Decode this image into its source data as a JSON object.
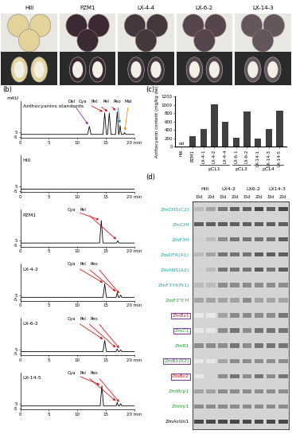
{
  "photo_panel": {
    "items": [
      {
        "label": "Hill",
        "color": "#e3d29a"
      },
      {
        "label": "PZM1",
        "color": "#3b2a33"
      },
      {
        "label": "LX-4-4",
        "color": "#46363e"
      },
      {
        "label": "LX-6-2",
        "color": "#56454d"
      },
      {
        "label": "LX-14-3",
        "color": "#65555c"
      }
    ]
  },
  "chart_data": [
    {
      "type": "line",
      "panel_label": "(b)",
      "y_label": "mAU",
      "title": "Anthocyanins standards",
      "color": "#000000",
      "x": [
        0,
        11.8,
        12.1,
        12.4,
        14.5,
        14.8,
        15.1,
        15.3,
        15.6,
        15.9,
        16.7,
        17.0,
        17.25,
        17.3,
        17.5,
        17.7,
        18.1,
        18.3,
        18.5,
        20
      ],
      "values": [
        0,
        0,
        18,
        0,
        0,
        48,
        0,
        0,
        48,
        0,
        0,
        50,
        0,
        0,
        20,
        0,
        0,
        4,
        0,
        0
      ],
      "xlim": [
        0,
        20
      ],
      "xticks": [
        0,
        5,
        10,
        15,
        {
          "value": 20,
          "label": "20 min"
        }
      ],
      "ylim": [
        -8,
        75
      ],
      "yticks": [
        -5,
        5
      ],
      "annotations": [
        {
          "text": "Del",
          "x": 12.1,
          "y": 18,
          "color": "#7a2fb0"
        },
        {
          "text": "Cya",
          "x": 14.8,
          "y": 48,
          "color": "#d01818"
        },
        {
          "text": "Pet",
          "x": 15.6,
          "y": 48,
          "color": "#d01818"
        },
        {
          "text": "Pel",
          "x": 17.0,
          "y": 50,
          "color": "#d01818"
        },
        {
          "text": "Peo",
          "x": 17.5,
          "y": 20,
          "color": "#1f6fd0"
        },
        {
          "text": "Mal",
          "x": 18.3,
          "y": 4,
          "color": "#f08a10"
        }
      ]
    },
    {
      "type": "line",
      "title": "Hill",
      "color": "#000000",
      "x": [
        0,
        20
      ],
      "values": [
        0,
        0
      ],
      "xlim": [
        0,
        20
      ],
      "xticks": [
        0,
        5,
        10,
        15,
        {
          "value": 20,
          "label": "20 min"
        }
      ],
      "ylim": [
        -8,
        75
      ],
      "yticks": [
        -5,
        5
      ]
    },
    {
      "type": "line",
      "title": "PZM1",
      "color": "#000000",
      "x": [
        0,
        13.9,
        14.2,
        14.5,
        16.9,
        17.1,
        17.3,
        20
      ],
      "values": [
        0,
        0,
        50,
        0,
        0,
        5,
        0,
        0
      ],
      "xlim": [
        0,
        20
      ],
      "xticks": [
        0,
        5,
        10,
        15,
        {
          "value": 20,
          "label": "20 min"
        }
      ],
      "ylim": [
        -8,
        75
      ],
      "yticks": [
        -5,
        5
      ],
      "annotations": [
        {
          "text": "Cya",
          "x": 14.2,
          "y": 50,
          "color": "#d01818"
        },
        {
          "text": "Pel",
          "x": 17.1,
          "y": 5,
          "color": "#d01818"
        }
      ]
    },
    {
      "type": "line",
      "title": "LX-4-2",
      "color": "#000000",
      "x": [
        0,
        14.5,
        14.8,
        15.1,
        16.8,
        17.0,
        17.2,
        17.4,
        17.6,
        17.8,
        20
      ],
      "values": [
        0,
        0,
        30,
        0,
        0,
        10,
        0,
        0,
        5,
        0,
        0
      ],
      "xlim": [
        0,
        20
      ],
      "xticks": [
        0,
        5,
        10,
        15,
        {
          "value": 20,
          "label": "20 min"
        }
      ],
      "ylim": [
        -8,
        75
      ],
      "yticks": [
        -5,
        5
      ],
      "annotations": [
        {
          "text": "Cya",
          "x": 14.8,
          "y": 30,
          "color": "#d01818"
        },
        {
          "text": "Pel",
          "x": 17.0,
          "y": 10,
          "color": "#d01818"
        },
        {
          "text": "Peo",
          "x": 17.6,
          "y": 5,
          "color": "#d01818"
        }
      ]
    },
    {
      "type": "line",
      "title": "LX-6-2",
      "color": "#000000",
      "x": [
        0,
        14.5,
        14.8,
        15.1,
        16.8,
        17.0,
        17.2,
        17.4,
        17.6,
        17.8,
        20
      ],
      "values": [
        0,
        0,
        25,
        0,
        0,
        6,
        0,
        0,
        4,
        0,
        0
      ],
      "xlim": [
        0,
        20
      ],
      "xticks": [
        0,
        5,
        10,
        15,
        {
          "value": 20,
          "label": "20 min"
        }
      ],
      "ylim": [
        -8,
        75
      ],
      "yticks": [
        -5,
        5
      ],
      "annotations": [
        {
          "text": "Cya",
          "x": 14.8,
          "y": 25,
          "color": "#d01818"
        },
        {
          "text": "Pel",
          "x": 17.0,
          "y": 6,
          "color": "#d01818"
        },
        {
          "text": "Peo",
          "x": 17.6,
          "y": 4,
          "color": "#d01818"
        }
      ]
    },
    {
      "type": "line",
      "title": "LX-14-5",
      "color": "#000000",
      "x": [
        0,
        14.0,
        14.3,
        14.6,
        16.8,
        17.0,
        17.2,
        17.4,
        17.6,
        17.8,
        20
      ],
      "values": [
        0,
        0,
        45,
        0,
        0,
        8,
        0,
        0,
        5,
        0,
        0
      ],
      "xlim": [
        0,
        20
      ],
      "xticks": [
        0,
        5,
        10,
        15,
        {
          "value": 20,
          "label": "20 min"
        }
      ],
      "ylim": [
        -8,
        75
      ],
      "yticks": [
        -5,
        5
      ],
      "annotations": [
        {
          "text": "Cya",
          "x": 14.3,
          "y": 45,
          "color": "#d01818"
        },
        {
          "text": "Pel",
          "x": 17.0,
          "y": 8,
          "color": "#d01818"
        },
        {
          "text": "Peo",
          "x": 17.6,
          "y": 5,
          "color": "#d01818"
        }
      ]
    },
    {
      "type": "bar",
      "panel_label": "(c)",
      "y_label": "Anthocyanin content (mg/kg dw)",
      "color": "#404040",
      "categories": [
        "Hill",
        "PZM1",
        "LX-4-1",
        "LX-4-2",
        "LX-4-4",
        "LX-6-1",
        "LX-6-2",
        "LX-14-1",
        "LX-14-3",
        "LX-14-5"
      ],
      "values": [
        null,
        250,
        430,
        1010,
        590,
        220,
        840,
        190,
        420,
        860
      ],
      "annotations": [
        {
          "category": "Hill",
          "text": "nd"
        }
      ],
      "groups": [
        {
          "label": "pCL1",
          "categories": [
            "LX-4-1",
            "LX-4-2",
            "LX-4-4"
          ]
        },
        {
          "label": "pCL3",
          "categories": [
            "LX-6-1",
            "LX-6-2"
          ]
        },
        {
          "label": "pCL4",
          "categories": [
            "LX-14-1",
            "LX-14-3",
            "LX-14-5"
          ]
        }
      ],
      "ylim": [
        0,
        1200
      ],
      "yticks": [
        0,
        200,
        400,
        600,
        800,
        1000,
        1200
      ]
    },
    {
      "type": "heatmap",
      "panel_label": "(d)",
      "groups": [
        {
          "label": "Hill",
          "columns": [
            "15d",
            "20d"
          ]
        },
        {
          "label": "LX4-2",
          "columns": [
            "15d",
            "20d"
          ]
        },
        {
          "label": "LX6-2",
          "columns": [
            "15d",
            "20d"
          ]
        },
        {
          "label": "LX14-3",
          "columns": [
            "15d",
            "20d"
          ]
        }
      ],
      "rows": [
        {
          "label": "ZmCHS(C2)",
          "color": "#1aa3a3",
          "boxed": false
        },
        {
          "label": "ZmCHI",
          "color": "#1aa3a3",
          "boxed": false
        },
        {
          "label": "ZmF3H",
          "color": "#1aa3a3",
          "boxed": false
        },
        {
          "label": "ZmDFR(A1)",
          "color": "#1aa3a3",
          "boxed": false
        },
        {
          "label": "ZmANS(A2)",
          "color": "#1aa3a3",
          "boxed": false
        },
        {
          "label": "ZmF3'H(Pr1)",
          "color": "#1aa3a3",
          "boxed": false
        },
        {
          "label": "ZmF3'5'H",
          "color": "#2e9a3a",
          "boxed": false
        },
        {
          "label": "ZmBz1",
          "color": "#d42020",
          "boxed": true
        },
        {
          "label": "ZmC1",
          "color": "#2e9a3a",
          "boxed": true
        },
        {
          "label": "ZmR1",
          "color": "#2e9a3a",
          "boxed": false
        },
        {
          "label": "ZmB1(R2)",
          "color": "#2e9a3a",
          "boxed": true
        },
        {
          "label": "ZmBz2",
          "color": "#d42020",
          "boxed": true
        },
        {
          "label": "ZmMrp1",
          "color": "#2e9a3a",
          "boxed": false
        },
        {
          "label": "ZmVp1",
          "color": "#2e9a3a",
          "boxed": false
        },
        {
          "label": "ZmActin1",
          "color": "#000000",
          "boxed": false
        }
      ],
      "cells": [
        [
          0.3,
          0.4,
          0.6,
          0.7,
          0.7,
          0.8,
          0.7,
          0.8
        ],
        [
          0.7,
          0.7,
          0.7,
          0.7,
          0.7,
          0.7,
          0.7,
          0.7
        ],
        [
          0.2,
          0.3,
          0.5,
          0.6,
          0.6,
          0.6,
          0.6,
          0.7
        ],
        [
          0.3,
          0.4,
          0.6,
          0.6,
          0.6,
          0.7,
          0.7,
          0.7
        ],
        [
          0.2,
          0.3,
          0.6,
          0.6,
          0.6,
          0.7,
          0.6,
          0.7
        ],
        [
          0.3,
          0.3,
          0.5,
          0.5,
          0.5,
          0.5,
          0.5,
          0.5
        ],
        [
          0.4,
          0.4,
          0.4,
          0.4,
          0.5,
          0.4,
          0.4,
          0.4
        ],
        [
          0.1,
          0.1,
          0.4,
          0.5,
          0.5,
          0.5,
          0.5,
          0.6
        ],
        [
          0.1,
          0.1,
          0.5,
          0.6,
          0.5,
          0.6,
          0.6,
          0.6
        ],
        [
          0.5,
          0.5,
          0.5,
          0.6,
          0.5,
          0.6,
          0.6,
          0.6
        ],
        [
          0.1,
          0.1,
          0.4,
          0.5,
          0.5,
          0.5,
          0.5,
          0.5
        ],
        [
          0.1,
          0.2,
          0.5,
          0.6,
          0.5,
          0.6,
          0.5,
          0.6
        ],
        [
          0.4,
          0.4,
          0.5,
          0.5,
          0.5,
          0.5,
          0.5,
          0.5
        ],
        [
          0.5,
          0.5,
          0.5,
          0.5,
          0.5,
          0.5,
          0.5,
          0.5
        ],
        [
          0.8,
          0.8,
          0.8,
          0.8,
          0.8,
          0.8,
          0.8,
          0.8
        ]
      ]
    }
  ]
}
